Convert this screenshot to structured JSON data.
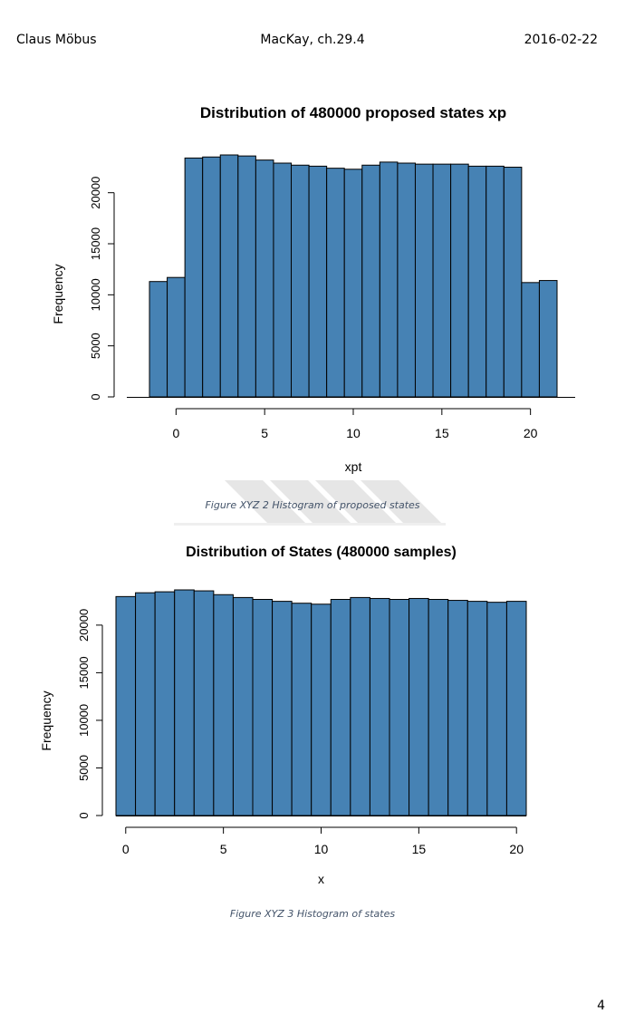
{
  "header": {
    "author": "Claus Möbus",
    "chapter": "MacKay, ch.29.4",
    "date": "2016-02-22"
  },
  "captions": [
    "Figure XYZ 2  Histogram of proposed states",
    "Figure XYZ 3  Histogram of states"
  ],
  "page_number": "4",
  "colors": {
    "bar_fill": "#4682b4",
    "bar_stroke": "#000000",
    "watermark": "#e6e6e6"
  },
  "chart_data": [
    {
      "type": "bar",
      "title": "Distribution of 480000 proposed states xp",
      "xlabel": "xpt",
      "ylabel": "Frequency",
      "bin_width": 1,
      "bin_starts": [
        -1.5,
        -0.5,
        0.5,
        1.5,
        2.5,
        3.5,
        4.5,
        5.5,
        6.5,
        7.5,
        8.5,
        9.5,
        10.5,
        11.5,
        12.5,
        13.5,
        14.5,
        15.5,
        16.5,
        17.5,
        18.5,
        19.5,
        20.5
      ],
      "values": [
        11300,
        11700,
        23400,
        23500,
        23700,
        23600,
        23200,
        22900,
        22700,
        22600,
        22400,
        22300,
        22700,
        23000,
        22900,
        22800,
        22800,
        22800,
        22600,
        22600,
        22500,
        11200,
        11400
      ],
      "xlim": [
        -1.5,
        21.5
      ],
      "ylim": [
        0,
        23700
      ],
      "x_ticks": [
        0,
        5,
        10,
        15,
        20
      ],
      "x_tick_labels": [
        "0",
        "5",
        "10",
        "15",
        "20"
      ],
      "y_ticks": [
        0,
        5000,
        10000,
        15000,
        20000
      ],
      "y_tick_labels": [
        "0",
        "5000",
        "10000",
        "15000",
        "20000"
      ],
      "grid": false
    },
    {
      "type": "bar",
      "title": "Distribution of States (480000 samples)",
      "xlabel": "x",
      "ylabel": "Frequency",
      "bin_width": 1,
      "bin_starts": [
        -0.5,
        0.5,
        1.5,
        2.5,
        3.5,
        4.5,
        5.5,
        6.5,
        7.5,
        8.5,
        9.5,
        10.5,
        11.5,
        12.5,
        13.5,
        14.5,
        15.5,
        16.5,
        17.5,
        18.5,
        19.5
      ],
      "values": [
        23000,
        23400,
        23500,
        23700,
        23600,
        23200,
        22900,
        22700,
        22500,
        22300,
        22200,
        22700,
        22900,
        22800,
        22700,
        22800,
        22700,
        22600,
        22500,
        22400,
        22500
      ],
      "xlim": [
        -0.5,
        20.5
      ],
      "ylim": [
        0,
        23700
      ],
      "x_ticks": [
        0,
        5,
        10,
        15,
        20
      ],
      "x_tick_labels": [
        "0",
        "5",
        "10",
        "15",
        "20"
      ],
      "y_ticks": [
        0,
        5000,
        10000,
        15000,
        20000
      ],
      "y_tick_labels": [
        "0",
        "5000",
        "10000",
        "15000",
        "20000"
      ],
      "grid": false
    }
  ]
}
